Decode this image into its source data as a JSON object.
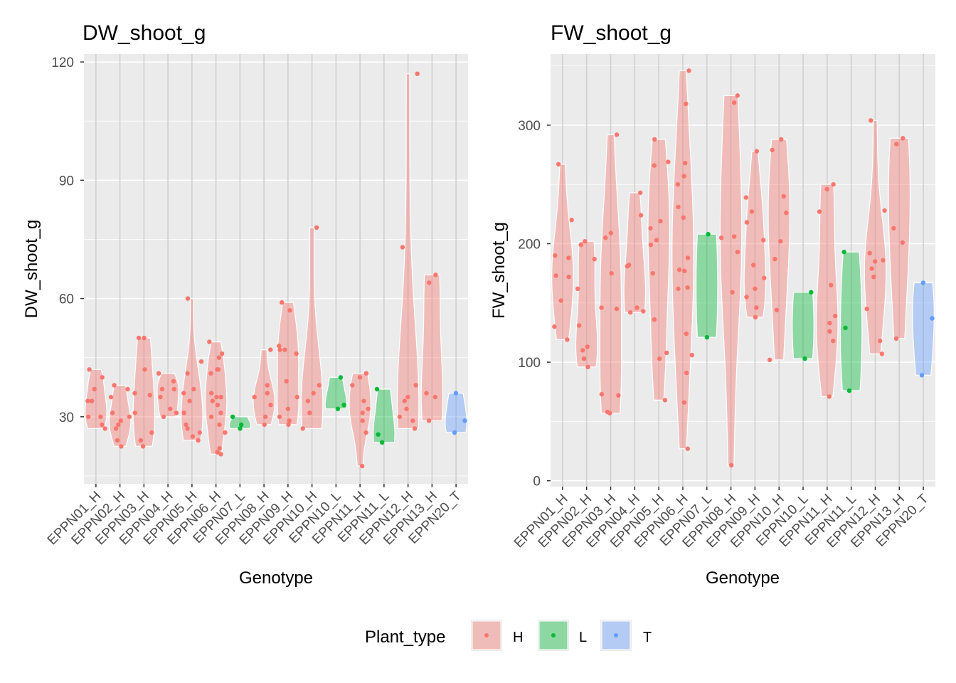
{
  "chart_data": [
    {
      "type": "violin",
      "title": "DW_shoot_g",
      "xlabel": "Genotype",
      "ylabel": "DW_shoot_g",
      "ylim": [
        13,
        122
      ],
      "yticks": [
        30,
        60,
        90,
        120
      ],
      "grid": true,
      "categories": [
        "EPPN01_H",
        "EPPN02_H",
        "EPPN03_H",
        "EPPN04_H",
        "EPPN05_H",
        "EPPN06_H",
        "EPPN07_L",
        "EPPN08_H",
        "EPPN09_H",
        "EPPN10_H",
        "EPPN10_L",
        "EPPN11_H",
        "EPPN11_L",
        "EPPN12_H",
        "EPPN13_H",
        "EPPN20_T"
      ],
      "plant_type": [
        "H",
        "H",
        "H",
        "H",
        "H",
        "H",
        "L",
        "H",
        "H",
        "H",
        "L",
        "H",
        "L",
        "H",
        "H",
        "T"
      ],
      "points": [
        [
          30,
          34,
          37,
          40,
          42,
          28,
          30,
          27,
          34
        ],
        [
          22.5,
          24,
          27,
          29,
          31,
          35,
          37,
          38,
          28,
          30
        ],
        [
          22.5,
          24,
          26,
          31,
          35.5,
          36,
          42,
          50,
          50
        ],
        [
          30,
          31,
          32,
          35,
          37,
          37,
          39,
          41
        ],
        [
          24,
          25,
          26,
          27,
          28,
          31,
          34,
          36,
          37,
          41,
          44,
          60
        ],
        [
          20.5,
          21,
          22,
          26,
          28,
          30,
          31,
          33,
          34,
          35,
          35,
          36,
          41,
          42,
          42,
          45,
          46,
          49
        ],
        [
          27,
          28,
          30
        ],
        [
          28,
          30,
          33,
          35,
          36,
          38,
          47
        ],
        [
          28,
          29,
          30,
          32,
          35,
          39,
          46,
          47,
          47,
          48,
          57,
          59
        ],
        [
          27,
          31,
          34,
          36,
          38,
          78
        ],
        [
          32,
          33,
          40
        ],
        [
          17.5,
          26,
          29,
          31,
          32,
          34,
          38,
          40,
          41
        ],
        [
          23.5,
          25.5,
          37
        ],
        [
          27,
          29,
          30,
          32,
          34,
          35,
          38,
          73,
          117
        ],
        [
          29,
          35,
          36,
          64,
          66
        ],
        [
          26,
          29,
          36
        ]
      ]
    },
    {
      "type": "violin",
      "title": "FW_shoot_g",
      "xlabel": "Genotype",
      "ylabel": "FW_shoot_g",
      "ylim": [
        -5,
        360
      ],
      "yticks": [
        0,
        100,
        200,
        300
      ],
      "grid": true,
      "categories": [
        "EPPN01_H",
        "EPPN02_H",
        "EPPN03_H",
        "EPPN04_H",
        "EPPN05_H",
        "EPPN06_H",
        "EPPN07_L",
        "EPPN08_H",
        "EPPN09_H",
        "EPPN10_H",
        "EPPN10_L",
        "EPPN11_H",
        "EPPN11_L",
        "EPPN12_H",
        "EPPN13_H",
        "EPPN20_T"
      ],
      "plant_type": [
        "H",
        "H",
        "H",
        "H",
        "H",
        "H",
        "L",
        "H",
        "H",
        "H",
        "L",
        "H",
        "L",
        "H",
        "H",
        "T"
      ],
      "points": [
        [
          119,
          130,
          152,
          172,
          173,
          188,
          190,
          220,
          267
        ],
        [
          96,
          103,
          110,
          113,
          131,
          162,
          187,
          199,
          202
        ],
        [
          57,
          58,
          72,
          73,
          145,
          146,
          175,
          205,
          209,
          292
        ],
        [
          142,
          143,
          146,
          181,
          182,
          224,
          243
        ],
        [
          68,
          103,
          108,
          136,
          175,
          199,
          203,
          213,
          219,
          266,
          269,
          288
        ],
        [
          27,
          66,
          91,
          106,
          124,
          162,
          163,
          177,
          178,
          188,
          222,
          231,
          250,
          257,
          268,
          318,
          346
        ],
        [
          121,
          208
        ],
        [
          13,
          159,
          193,
          205,
          206,
          319,
          325
        ],
        [
          138,
          146,
          155,
          162,
          171,
          182,
          203,
          218,
          227,
          239,
          278
        ],
        [
          102,
          144,
          187,
          202,
          226,
          240,
          279,
          288
        ],
        [
          103,
          159
        ],
        [
          71,
          118,
          126,
          133,
          139,
          165,
          227,
          246,
          250
        ],
        [
          76,
          129,
          193
        ],
        [
          107,
          118,
          145,
          172,
          179,
          185,
          186,
          192,
          228,
          304
        ],
        [
          120,
          201,
          213,
          284,
          289
        ],
        [
          89,
          137,
          167
        ]
      ]
    }
  ],
  "legend": {
    "title": "Plant_type",
    "items": [
      {
        "label": "H",
        "color": "#F8766D"
      },
      {
        "label": "L",
        "color": "#00BA38"
      },
      {
        "label": "T",
        "color": "#619CFF"
      }
    ]
  },
  "colors": {
    "panel_background": "#EBEBEB",
    "grid_major": "#FFFFFF",
    "H": "#F8766D",
    "L": "#00BA38",
    "T": "#619CFF"
  }
}
